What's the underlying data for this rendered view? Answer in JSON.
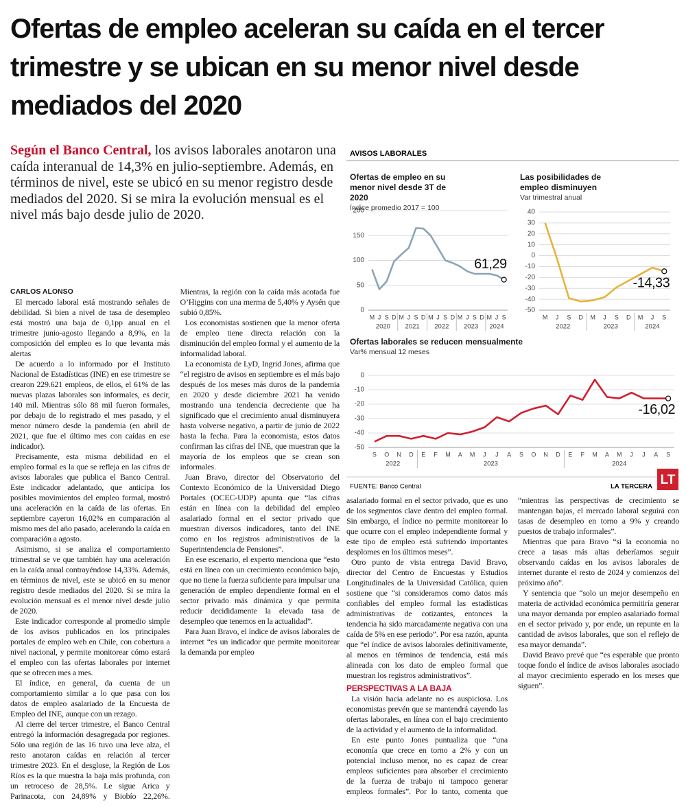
{
  "headline": "Ofertas de empleo aceleran su caída en el tercer trimestre y se ubican en su menor nivel desde mediados del 2020",
  "lead": {
    "highlight": "Según el Banco Central,",
    "text": " los avisos laborales anotaron una caída interanual de 14,3% en julio-septiembre. Además, en términos de nivel, este se ubicó en su menor registro desde mediados del 2020. Si se mira la evolución mensual es el nivel más bajo desde julio de 2020."
  },
  "infographic": {
    "label": "AVISOS LABORALES",
    "source": "FUENTE: Banco Central",
    "brand": "LA TERCERA",
    "logo": "LT"
  },
  "chart_data": [
    {
      "type": "line",
      "title": "Ofertas de empleo en su menor nivel desde 3T de 2020",
      "subtitle": "Índice promedio 2017 = 100",
      "categories": [
        "M",
        "J",
        "S",
        "D",
        "M",
        "J",
        "S",
        "D",
        "M",
        "J",
        "S",
        "D",
        "M",
        "J",
        "S",
        "D",
        "M",
        "J",
        "S"
      ],
      "year_labels": [
        "2020",
        "2021",
        "2022",
        "2023",
        "2024"
      ],
      "values": [
        82,
        42,
        58,
        98,
        112,
        125,
        165,
        164,
        150,
        125,
        100,
        95,
        88,
        78,
        73,
        73,
        73,
        70,
        61.29
      ],
      "value_labels": [
        null,
        null,
        null,
        null,
        null,
        null,
        null,
        null,
        null,
        null,
        null,
        null,
        null,
        null,
        null,
        null,
        null,
        null,
        "61,29"
      ],
      "color": "#8ba5b6",
      "ylim": [
        0,
        200
      ],
      "yticks": [
        0,
        50,
        100,
        150,
        200
      ],
      "grid": true
    },
    {
      "type": "line",
      "title": "Las posibilidades de empleo disminuyen",
      "subtitle": "Var trimestral anual",
      "categories": [
        "M",
        "J",
        "S",
        "D",
        "M",
        "J",
        "S",
        "D",
        "M",
        "J",
        "S"
      ],
      "year_labels": [
        "2022",
        "2023",
        "2024"
      ],
      "values": [
        30,
        -3,
        -39,
        -42,
        -41,
        -38,
        -29,
        -23,
        -17,
        -11,
        -14.33
      ],
      "value_labels": [
        null,
        null,
        null,
        null,
        null,
        null,
        null,
        null,
        null,
        null,
        "-14,33"
      ],
      "color": "#e8b23a",
      "ylim": [
        -50,
        40
      ],
      "yticks": [
        -50,
        -40,
        -30,
        -20,
        -10,
        0,
        10,
        20,
        30,
        40
      ],
      "grid": true
    },
    {
      "type": "line",
      "title": "Ofertas laborales se reducen mensualmente",
      "subtitle": "Var% mensual 12 meses",
      "categories": [
        "S",
        "O",
        "N",
        "D",
        "E",
        "F",
        "M",
        "A",
        "M",
        "J",
        "J",
        "A",
        "S",
        "O",
        "N",
        "D",
        "E",
        "F",
        "M",
        "A",
        "M",
        "J",
        "J",
        "A",
        "S"
      ],
      "year_labels": [
        "2022",
        "2023",
        "2024"
      ],
      "values": [
        -46,
        -42,
        -42,
        -44,
        -42,
        -44,
        -40,
        -41,
        -39,
        -36,
        -29,
        -32,
        -26,
        -23,
        -21,
        -27,
        -14,
        -17,
        -3,
        -15,
        -16,
        -12,
        -16,
        -16,
        -16.02
      ],
      "value_labels": [
        null,
        null,
        null,
        null,
        null,
        null,
        null,
        null,
        null,
        null,
        null,
        null,
        null,
        null,
        null,
        null,
        null,
        null,
        null,
        null,
        null,
        null,
        null,
        null,
        "-16,02"
      ],
      "color": "#d0202e",
      "ylim": [
        -50,
        0
      ],
      "yticks": [
        -50,
        -40,
        -30,
        -20,
        -10,
        0
      ],
      "grid": true
    }
  ],
  "article": {
    "byline": "CARLOS ALONSO",
    "left_paragraphs": [
      "El mercado laboral está mostrando señales de debilidad. Si bien a nivel de tasa de desempleo está mostró una baja de 0,1pp anual en el trimestre junio-agosto llegando a 8,9%, en la composición del empleo es lo que levanta más alertas",
      "De acuerdo a lo informado por el Instituto Nacional de Estadísticas (INE) en ese trimestre se crearon 229.621 empleos, de ellos, el 61% de las nuevas plazas laborales son informales, es decir, 140 mil. Mientras sólo 88 mil fueron formales, por debajo de lo registrado el mes pasado, y el menor número desde la pandemia (en abril de 2021, que fue el último mes con caídas en ese indicador).",
      "Precisamente, esta misma debilidad en el empleo formal es la que se refleja en las cifras de avisos laborales que publica el Banco Central. Este indicador adelantado, que anticipa los posibles movimientos del empleo formal, mostró una aceleración en la caída de las ofertas. En septiembre cayeron 16,02% en comparación al mismo mes del año pasado, acelerando la caída en comparación a agosto.",
      "Asimismo, si se analiza el comportamiento trimestral se ve que también hay una aceleración en la caída anual contrayéndose 14,33%. Además, en términos de nivel, este se ubicó en su menor registro desde mediados del 2020. Si se mira la evolución mensual es el menor nivel desde julio de 2020.",
      "Este indicador corresponde al promedio simple de los avisos publicados en los principales portales de empleo web en Chile, con cobertura a nivel nacional, y permite monitorear cómo estará el empleo con las ofertas laborales por internet que se ofrecen mes a mes.",
      "El índice, en general, da cuenta de un comportamiento similar a lo que pasa con los datos de empleo asalariado de la Encuesta de Empleo del INE, aunque con un rezago.",
      "Al cierre del tercer trimestre, el Banco Central entregó la información desagregada por regiones. Sólo una región de las 16 tuvo una leve alza, el resto anotaron caídas en relación al tercer trimestre 2023. En el desglose, la Región de Los Ríos es la que muestra la baja más profunda, con un retroceso de 28,5%. Le sigue Arica y Parinacota, con 24,89% y Biobío 22,26%. Mientras, la región con la caída más acotada fue O’Higgins con una merma de 5,40% y Aysén que subió 0,85%.",
      "Los economistas sostienen que la menor oferta de empleo tiene directa relación con la disminución del empleo formal y el aumento de la informalidad laboral.",
      "La economista de LyD, Ingrid Jones, afirma que “el registro de avisos en septiembre es el más bajo después de los meses más duros de la pandemia en 2020 y desde diciembre 2021 ha venido mostrando una tendencia decreciente que ha significado que el crecimiento anual disminuyera hasta volverse negativo, a partir de junio de 2022 hasta la fecha. Para la economista, estos datos confirman las cifras del INE, que muestran que la mayoría de los empleos que se crean son informales.",
      "Juan Bravo, director del Observatorio del Contexto Económico de la Universidad Diego Portales (OCEC-UDP) apunta que “las cifras están en línea con la debilidad del empleo asalariado formal en el sector privado que muestran diversos indicadores, tanto del INE como en los registros administrativos de la Superintendencia de Pensiones”.",
      "En ese escenario, el experto menciona que “esto está en línea con un crecimiento económico bajo, que no tiene la fuerza suficiente para impulsar una generación de empleo dependiente formal en el sector privado más dinámica y que permita reducir decididamente la elevada tasa de desempleo que tenemos en la actualidad”.",
      "Para Juan Bravo, el índice de avisos laborales de internet “es un indicador que permite monitorear la demanda por empleo"
    ],
    "right_paragraphs": [
      "asalariado formal en el sector privado, que es uno de los segmentos clave dentro del empleo formal. Sin embargo, el índice no permite monitorear lo que ocurre con el empleo independiente formal y este tipo de empleo está sufriendo importantes desplomes en los últimos meses”.",
      "Otro punto de vista entrega David Bravo, director del Centro de Encuestas y Estudios Longitudinales de la Universidad Católica, quien sostiene que “si consideramos como datos más confiables del empleo formal las estadísticas administrativas de cotizantes, entonces la tendencia ha sido marcadamente negativa con una caída de 5% en ese periodo”. Por esa razón, apunta que “el índice de avisos laborales definitivamente, al menos en términos de tendencia, está más alineada con los dato de empleo formal que muestran los registros administrativos”."
    ],
    "subhead": "PERSPECTIVAS A LA BAJA",
    "closing_paragraphs": [
      "La visión hacia adelante no es auspiciosa. Los economistas prevén que se mantendrá cayendo las ofertas laborales, en línea con el bajo crecimiento de la actividad y el aumento de la informalidad.",
      "En este punto Jones puntualiza que “una economía que crece en torno a 2% y con un potencial incluso menor, no es capaz de crear empleos suficientes para absorber el crecimiento de la fuerza de trabajo ni tampoco generar empleos formales”. Por lo tanto, comenta que “mientras las perspectivas de crecimiento se mantengan bajas, el mercado laboral seguirá con tasas de desempleo en torno a 9% y creando puestos de trabajo informales”.",
      "Mientras que para Bravo “si la economía no crece a tasas más altas deberíamos seguir observando caídas en los avisos laborales de internet durante el resto de 2024 y comienzos del próximo año”.",
      "Y sentencia que “solo un mejor desempeño en materia de actividad económica permitiría generar una mayor demanda por empleo asalariado formal en el sector privado y, por ende, un repunte en la cantidad de avisos laborales, que son el reflejo de esa mayor demanda”.",
      "David Bravo prevé que “es esperable que pronto toque fondo el índice de avisos laborales asociado al mayor crecimiento esperado en los meses que siguen”."
    ]
  }
}
